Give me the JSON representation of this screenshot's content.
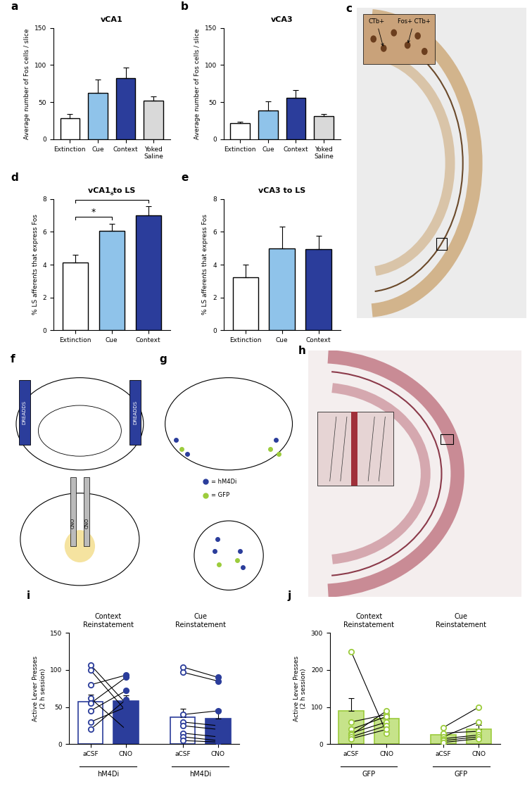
{
  "chart_data": [
    {
      "panel": "a",
      "type": "bar",
      "title": "vCA1",
      "ylabel": "Average number of Fos cells / slice",
      "categories": [
        "Extinction",
        "Cue",
        "Context",
        "Yoked\nSaline"
      ],
      "values": [
        28,
        62,
        82,
        52
      ],
      "errors": [
        6,
        18,
        15,
        6
      ],
      "colors": [
        "#ffffff",
        "#8fc3ea",
        "#2b3d9b",
        "#d9d9d9"
      ],
      "ylim": [
        0,
        150
      ],
      "yticks": [
        0,
        50,
        100,
        150
      ]
    },
    {
      "panel": "b",
      "type": "bar",
      "title": "vCA3",
      "ylabel": "Average number of Fos cells / slice",
      "categories": [
        "Extinction",
        "Cue",
        "Context",
        "Yoked\nSaline"
      ],
      "values": [
        22,
        39,
        56,
        31
      ],
      "errors": [
        2,
        12,
        10,
        3
      ],
      "colors": [
        "#ffffff",
        "#8fc3ea",
        "#2b3d9b",
        "#d9d9d9"
      ],
      "ylim": [
        0,
        150
      ],
      "yticks": [
        0,
        50,
        100,
        150
      ]
    },
    {
      "panel": "d",
      "type": "bar",
      "title": "vCA1 to LS",
      "ylabel": "% LS afferents that express Fos",
      "categories": [
        "Extinction",
        "Cue",
        "Context"
      ],
      "values": [
        4.15,
        6.05,
        7.0
      ],
      "errors": [
        0.45,
        0.45,
        0.55
      ],
      "colors": [
        "#ffffff",
        "#8fc3ea",
        "#2b3d9b"
      ],
      "ylim": [
        0,
        8
      ],
      "yticks": [
        0,
        2,
        4,
        6,
        8
      ],
      "significance": [
        {
          "pair": [
            0,
            1
          ],
          "label": "*"
        },
        {
          "pair": [
            0,
            2
          ],
          "label": "*"
        }
      ]
    },
    {
      "panel": "e",
      "type": "bar",
      "title": "vCA3 to LS",
      "ylabel": "% LS afferents that express Fos",
      "categories": [
        "Extinction",
        "Cue",
        "Context"
      ],
      "values": [
        3.25,
        5.0,
        4.95
      ],
      "errors": [
        0.75,
        1.3,
        0.8
      ],
      "colors": [
        "#ffffff",
        "#8fc3ea",
        "#2b3d9b"
      ],
      "ylim": [
        0,
        8
      ],
      "yticks": [
        0,
        2,
        4,
        6,
        8
      ]
    },
    {
      "panel": "i",
      "type": "paired_bar",
      "ylabel": "Active Lever Presses\n(2 h session)",
      "color": "#2b3d9b",
      "ylim": [
        0,
        150
      ],
      "yticks": [
        0,
        50,
        100,
        150
      ],
      "groups": [
        {
          "name": "Context\nReinstatement",
          "virus": "hM4Di",
          "categories": [
            "aCSF",
            "CNO"
          ],
          "colors": [
            "#ffffff",
            "#2b3d9b"
          ],
          "values": [
            57,
            58
          ],
          "errors": [
            10,
            8
          ],
          "points": [
            [
              107,
              100,
              80,
              62,
              55,
              45,
              30,
              20
            ],
            [
              55,
              45,
              93,
              20,
              90,
              72,
              50,
              60
            ]
          ]
        },
        {
          "name": "Cue\nReinstatement",
          "virus": "hM4Di",
          "categories": [
            "aCSF",
            "CNO"
          ],
          "colors": [
            "#ffffff",
            "#2b3d9b"
          ],
          "values": [
            36,
            35
          ],
          "errors": [
            12,
            12
          ],
          "points": [
            [
              104,
              97,
              40,
              30,
              25,
              15,
              10,
              5
            ],
            [
              90,
              85,
              45,
              25,
              20,
              10,
              5,
              3
            ]
          ]
        }
      ]
    },
    {
      "panel": "j",
      "type": "paired_bar",
      "ylabel": "Active Lever Presses\n(2 h session)",
      "color": "#9ccc3c",
      "ylim": [
        0,
        300
      ],
      "yticks": [
        0,
        100,
        200,
        300
      ],
      "groups": [
        {
          "name": "Context\nReinstatement",
          "virus": "GFP",
          "categories": [
            "aCSF",
            "CNO"
          ],
          "colors": [
            "#c6e38a",
            "#c6e38a"
          ],
          "values": [
            90,
            70
          ],
          "errors": [
            35,
            12
          ],
          "points": [
            [
              250,
              60,
              40,
              30,
              25,
              20,
              15
            ],
            [
              30,
              80,
              75,
              60,
              90,
              50,
              40
            ]
          ]
        },
        {
          "name": "Cue\nReinstatement",
          "virus": "GFP",
          "categories": [
            "aCSF",
            "CNO"
          ],
          "colors": [
            "#c6e38a",
            "#c6e38a"
          ],
          "values": [
            25,
            40
          ],
          "errors": [
            6,
            12
          ],
          "points": [
            [
              45,
              30,
              20,
              15,
              10,
              5
            ],
            [
              100,
              35,
              60,
              25,
              20,
              15
            ]
          ]
        }
      ]
    }
  ],
  "images": {
    "c": {
      "panel": "c",
      "annotations": [
        "CTb+",
        "Fos+ CTb+"
      ]
    },
    "f": {
      "panel": "f",
      "labels": [
        "DREADDS",
        "DREADDS",
        "CNO",
        "CNO"
      ]
    },
    "g": {
      "panel": "g",
      "legend": [
        {
          "color": "#2b3d9b",
          "label": "= hM4Di"
        },
        {
          "color": "#9ccc3c",
          "label": "= GFP"
        }
      ]
    },
    "h": {
      "panel": "h"
    }
  }
}
